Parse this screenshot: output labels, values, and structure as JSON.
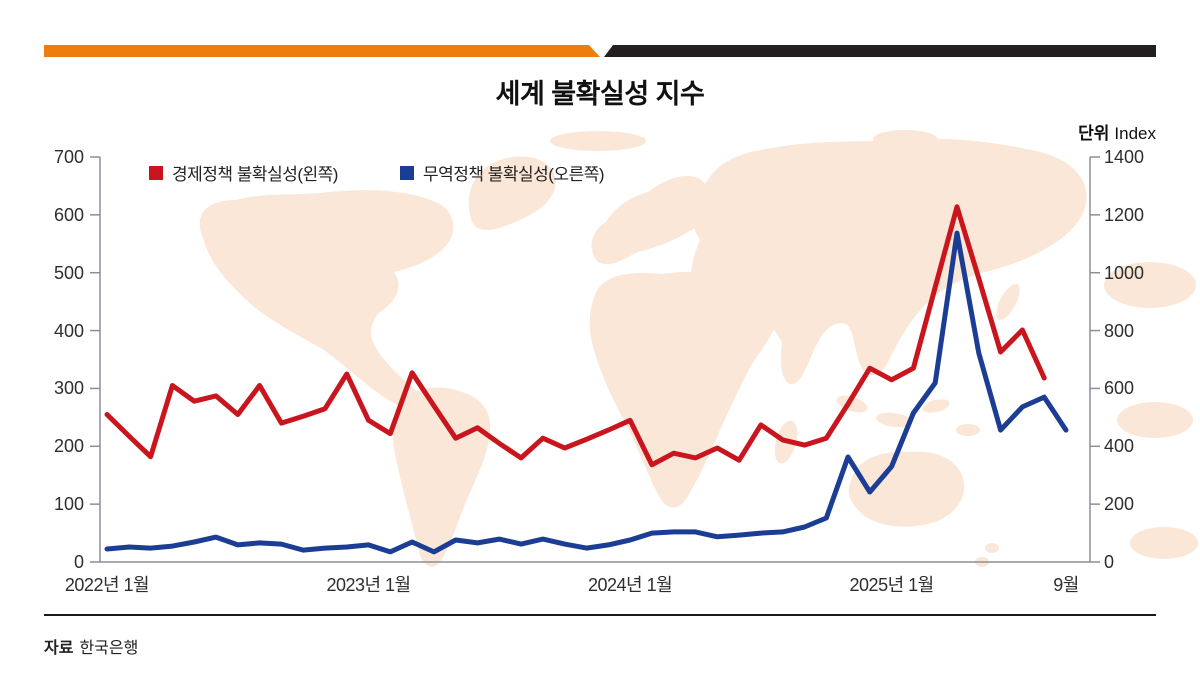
{
  "meta": {
    "title": "세계 불확실성 지수",
    "unit_label": "단위",
    "unit_value": "Index",
    "source_label": "자료",
    "source_value": "한국은행"
  },
  "legend": [
    {
      "label": "경제정책 불확실성(왼쪽)",
      "color": "#c9151e"
    },
    {
      "label": "무역정책 불확실성(오른쪽)",
      "color": "#1b3d94"
    }
  ],
  "colors": {
    "accent_orange": "#ed7d0d",
    "bar_black": "#231f20",
    "epu_red": "#c9151e",
    "tpu_blue": "#1b3d94",
    "map_fill": "#fae7d7",
    "axis_gray": "#8d8d9c",
    "divider_black": "#1a1a1a"
  },
  "chart_data": {
    "type": "line",
    "title": "세계 불확실성 지수",
    "x_unit": "month",
    "start_month": "2022-01",
    "months_span": 45,
    "x_tick_labels": [
      "2022년 1월",
      "2023년 1월",
      "2024년 1월",
      "2025년 1월",
      "9월"
    ],
    "x_tick_month_index": [
      0,
      12,
      24,
      36,
      44
    ],
    "left_axis": {
      "min": 0,
      "max": 700,
      "ticks": [
        0,
        100,
        200,
        300,
        400,
        500,
        600,
        700
      ]
    },
    "right_axis": {
      "min": 0,
      "max": 1400,
      "ticks": [
        0,
        200,
        400,
        600,
        800,
        1000,
        1200,
        1400
      ]
    },
    "grid": false,
    "legend_position": "top-left-inside",
    "series": [
      {
        "name": "경제정책 불확실성(왼쪽)",
        "axis": "left",
        "color": "#c9151e",
        "end_month": "2025-08",
        "values": [
          255,
          218,
          182,
          305,
          278,
          287,
          255,
          305,
          240,
          252,
          265,
          325,
          245,
          222,
          327,
          270,
          214,
          232,
          205,
          180,
          214,
          197,
          212,
          228,
          245,
          168,
          188,
          180,
          197,
          176,
          237,
          211,
          202,
          214,
          273,
          335,
          315,
          335,
          475,
          614,
          490,
          363,
          401,
          318
        ]
      },
      {
        "name": "무역정책 불확실성(오른쪽)",
        "axis": "right",
        "color": "#1b3d94",
        "end_month": "2025-09",
        "values": [
          45,
          52,
          48,
          55,
          69,
          86,
          59,
          66,
          62,
          41,
          48,
          52,
          59,
          35,
          69,
          35,
          76,
          66,
          79,
          62,
          79,
          62,
          48,
          59,
          76,
          100,
          104,
          104,
          87,
          93,
          100,
          104,
          121,
          152,
          363,
          242,
          330,
          515,
          619,
          1137,
          722,
          456,
          536,
          570,
          456
        ]
      }
    ]
  }
}
